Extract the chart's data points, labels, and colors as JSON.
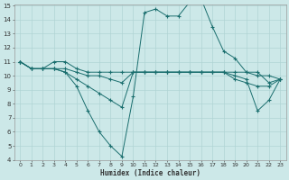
{
  "title": "",
  "xlabel": "Humidex (Indice chaleur)",
  "bg_color": "#cce8e8",
  "grid_color": "#b0d4d4",
  "line_color": "#1a6e6e",
  "xlim": [
    -0.5,
    23.5
  ],
  "ylim": [
    4,
    15
  ],
  "xticks": [
    0,
    1,
    2,
    3,
    4,
    5,
    6,
    7,
    8,
    9,
    10,
    11,
    12,
    13,
    14,
    15,
    16,
    17,
    18,
    19,
    20,
    21,
    22,
    23
  ],
  "yticks": [
    4,
    5,
    6,
    7,
    8,
    9,
    10,
    11,
    12,
    13,
    14,
    15
  ],
  "lines": [
    {
      "x": [
        0,
        1,
        2,
        3,
        4,
        5,
        6,
        7,
        8,
        9,
        10,
        11,
        12,
        13,
        14,
        15,
        16,
        17,
        18,
        19,
        20,
        21,
        22,
        23
      ],
      "y": [
        11,
        10.5,
        10.5,
        10.5,
        10.25,
        9.25,
        7.5,
        6.0,
        5.0,
        4.25,
        8.5,
        14.5,
        14.75,
        14.25,
        14.25,
        15.25,
        15.5,
        13.5,
        11.75,
        11.25,
        10.25,
        10.25,
        9.5,
        9.75
      ]
    },
    {
      "x": [
        0,
        1,
        2,
        3,
        4,
        5,
        6,
        7,
        8,
        9,
        10,
        11,
        12,
        13,
        14,
        15,
        16,
        17,
        18,
        19,
        20,
        21,
        22,
        23
      ],
      "y": [
        11,
        10.5,
        10.5,
        11,
        11,
        10.5,
        10.25,
        10.25,
        10.25,
        10.25,
        10.25,
        10.25,
        10.25,
        10.25,
        10.25,
        10.25,
        10.25,
        10.25,
        10.25,
        10.25,
        10.25,
        10.0,
        10.0,
        9.75
      ]
    },
    {
      "x": [
        0,
        1,
        2,
        3,
        4,
        5,
        6,
        7,
        8,
        9,
        10,
        11,
        12,
        13,
        14,
        15,
        16,
        17,
        18,
        19,
        20,
        21,
        22,
        23
      ],
      "y": [
        11,
        10.5,
        10.5,
        10.5,
        10.25,
        9.75,
        9.25,
        8.75,
        8.25,
        7.75,
        10.25,
        10.25,
        10.25,
        10.25,
        10.25,
        10.25,
        10.25,
        10.25,
        10.25,
        10.0,
        9.75,
        7.5,
        8.25,
        9.75
      ]
    },
    {
      "x": [
        0,
        1,
        2,
        3,
        4,
        5,
        6,
        7,
        8,
        9,
        10,
        11,
        12,
        13,
        14,
        15,
        16,
        17,
        18,
        19,
        20,
        21,
        22,
        23
      ],
      "y": [
        11,
        10.5,
        10.5,
        10.5,
        10.5,
        10.25,
        10.0,
        10.0,
        9.75,
        9.5,
        10.25,
        10.25,
        10.25,
        10.25,
        10.25,
        10.25,
        10.25,
        10.25,
        10.25,
        9.75,
        9.5,
        9.25,
        9.25,
        9.75
      ]
    }
  ]
}
